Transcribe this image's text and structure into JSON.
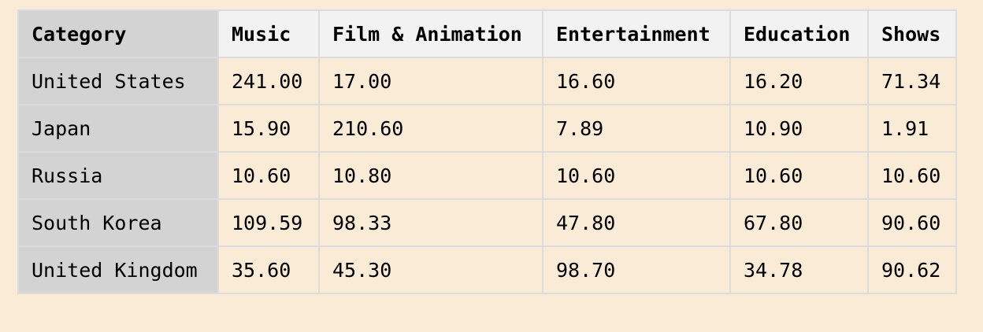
{
  "chart_data": {
    "type": "table",
    "corner_label": "Category",
    "columns": [
      "Music",
      "Film & Animation",
      "Entertainment",
      "Education",
      "Shows"
    ],
    "rows": [
      {
        "label": "United States",
        "values": [
          "241.00",
          "17.00",
          "16.60",
          "16.20",
          "71.34"
        ]
      },
      {
        "label": "Japan",
        "values": [
          "15.90",
          "210.60",
          "7.89",
          "10.90",
          "1.91"
        ]
      },
      {
        "label": "Russia",
        "values": [
          "10.60",
          "10.80",
          "10.60",
          "10.60",
          "10.60"
        ]
      },
      {
        "label": "South Korea",
        "values": [
          "109.59",
          "98.33",
          "47.80",
          "67.80",
          "90.60"
        ]
      },
      {
        "label": "United Kingdom",
        "values": [
          "35.60",
          "45.30",
          "98.70",
          "34.78",
          "90.62"
        ]
      }
    ]
  },
  "colors": {
    "page_background": "#faebd7",
    "header_background": "#f2f2f2",
    "row_header_background": "#d3d3d3",
    "cell_background": "#faebd7",
    "grid_line": "#dcdcdc"
  }
}
